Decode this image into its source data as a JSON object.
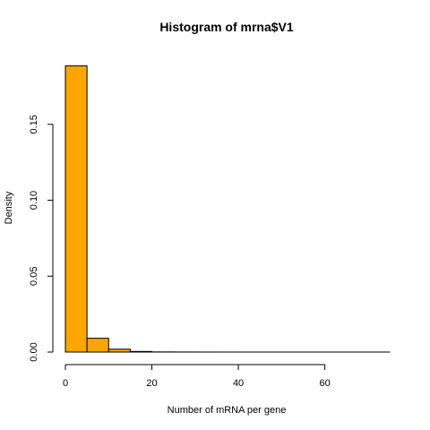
{
  "chart_data": {
    "type": "bar",
    "title": "Histogram of mrna$V1",
    "xlabel": "Number of mRNA per gene",
    "ylabel": "Density",
    "bar_color": "#FFA500",
    "bin_edges": [
      0,
      5,
      10,
      15,
      20,
      25,
      30,
      35,
      40,
      45,
      50,
      55,
      60,
      65,
      70,
      75
    ],
    "values": [
      0.1885,
      0.0091,
      0.0019,
      0.0004,
      0.0001,
      5e-05,
      3e-05,
      2e-05,
      1e-05,
      1e-05,
      1e-05,
      1e-05,
      1e-05,
      1e-05,
      1e-05
    ],
    "xlim": [
      0,
      75
    ],
    "ylim": [
      0,
      0.19
    ],
    "xticks": [
      0,
      20,
      40,
      60
    ],
    "yticks": [
      0,
      0.05,
      0.1,
      0.15
    ],
    "xtick_labels": [
      "0",
      "20",
      "40",
      "60"
    ],
    "ytick_labels": [
      "0.00",
      "0.05",
      "0.10",
      "0.15"
    ],
    "grid": false
  }
}
